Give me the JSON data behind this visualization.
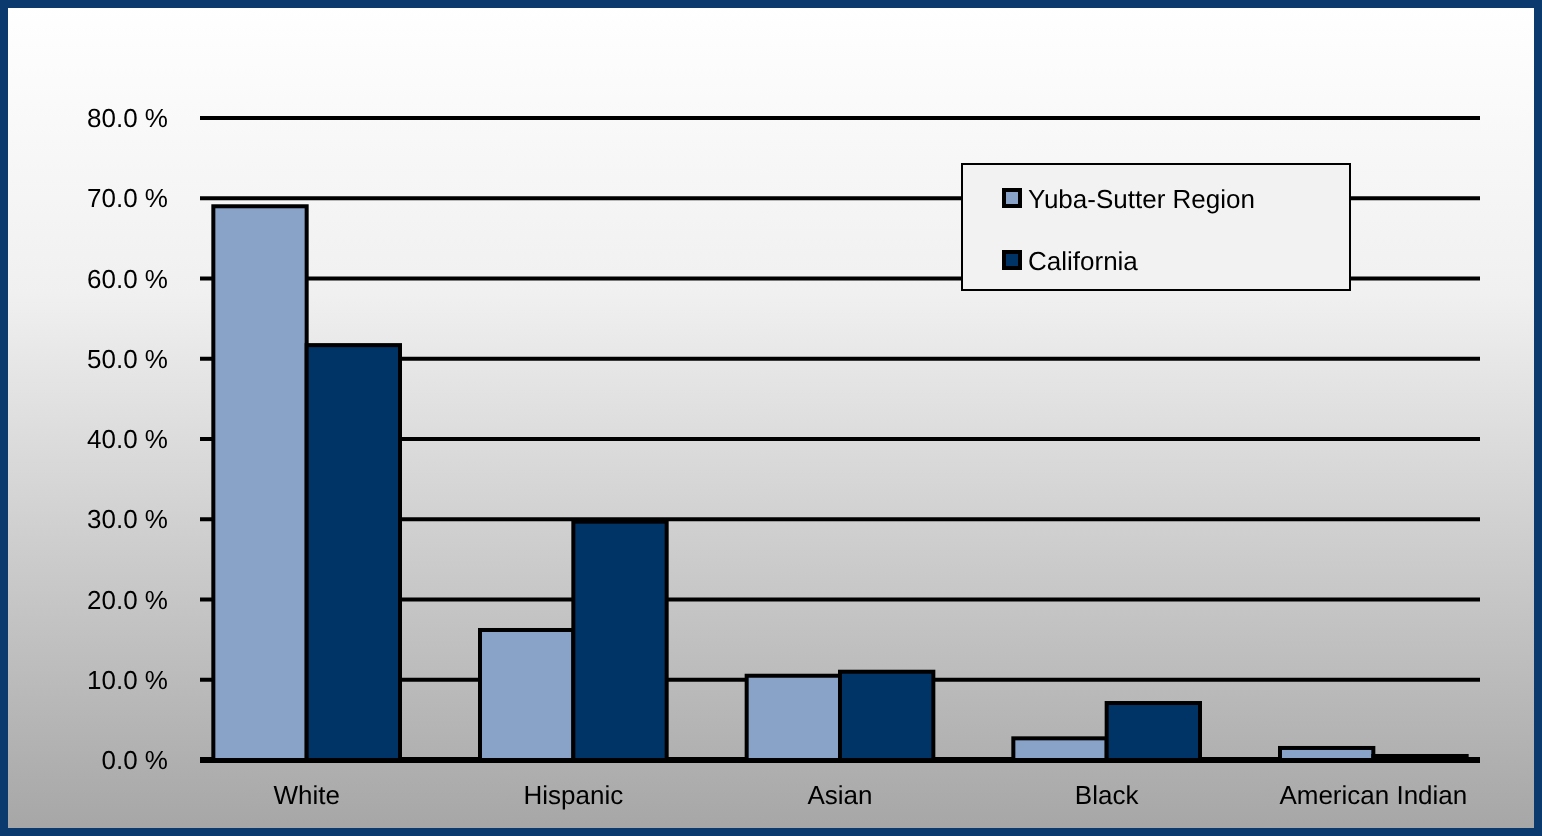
{
  "chart_data": {
    "type": "bar",
    "categories": [
      "White",
      "Hispanic",
      "Asian",
      "Black",
      "American Indian"
    ],
    "series": [
      {
        "name": "Yuba-Sutter Region",
        "color": "#88a2c8",
        "values": [
          69.0,
          16.2,
          10.5,
          2.7,
          1.5
        ]
      },
      {
        "name": "California",
        "color": "#003366",
        "values": [
          51.7,
          29.7,
          11.0,
          7.1,
          0.5
        ]
      }
    ],
    "ylim": [
      0,
      80
    ],
    "yticks": [
      {
        "value": 0,
        "label": "0.0 %"
      },
      {
        "value": 10,
        "label": "10.0 %"
      },
      {
        "value": 20,
        "label": "20.0 %"
      },
      {
        "value": 30,
        "label": "30.0 %"
      },
      {
        "value": 40,
        "label": "40.0 %"
      },
      {
        "value": 50,
        "label": "50.0 %"
      },
      {
        "value": 60,
        "label": "60.0 %"
      },
      {
        "value": 70,
        "label": "70.0 %"
      },
      {
        "value": 80,
        "label": "80.0 %"
      }
    ],
    "grid": "y",
    "legend": "top right"
  }
}
